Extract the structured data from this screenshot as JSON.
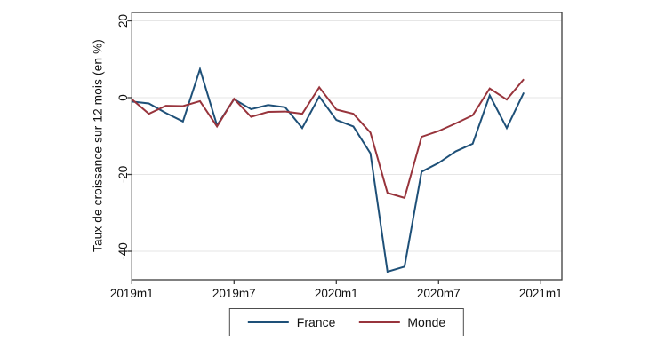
{
  "chart_data": {
    "type": "line",
    "title": "",
    "xlabel": "",
    "ylabel": "Taux de croissance sur 12 mois (en %)",
    "grid": true,
    "frame": "box",
    "legend_position": "bottom-center",
    "y_ticks": [
      20,
      0,
      -20,
      -40
    ],
    "ylim": [
      -47.5,
      22.2
    ],
    "x_axis_unit": "month",
    "x_tick_labels": [
      "2019m1",
      "2019m7",
      "2020m1",
      "2020m7",
      "2021m1"
    ],
    "x_tick_month_index": [
      0,
      6,
      12,
      18,
      24
    ],
    "x": [
      "2019m1",
      "2019m2",
      "2019m3",
      "2019m4",
      "2019m5",
      "2019m6",
      "2019m7",
      "2019m8",
      "2019m9",
      "2019m10",
      "2019m11",
      "2019m12",
      "2020m1",
      "2020m2",
      "2020m3",
      "2020m4",
      "2020m5",
      "2020m6",
      "2020m7",
      "2020m8",
      "2020m9",
      "2020m10",
      "2020m11",
      "2020m12"
    ],
    "series": [
      {
        "name": "France",
        "color": "#1e5078",
        "values": [
          -1.0,
          -1.5,
          -4.0,
          -6.2,
          7.4,
          -7.2,
          -0.4,
          -3.0,
          -1.9,
          -2.5,
          -7.9,
          0.3,
          -5.8,
          -7.5,
          -14.5,
          -45.3,
          -44.0,
          -19.3,
          -17.0,
          -14.0,
          -12.0,
          0.6,
          -7.9,
          1.3
        ]
      },
      {
        "name": "Monde",
        "color": "#98343c",
        "values": [
          -0.4,
          -4.2,
          -2.1,
          -2.2,
          -0.9,
          -7.5,
          -0.3,
          -5.0,
          -3.7,
          -3.6,
          -4.2,
          2.7,
          -3.1,
          -4.2,
          -9.1,
          -24.8,
          -26.1,
          -10.2,
          -8.7,
          -6.7,
          -4.6,
          2.4,
          -0.5,
          4.8
        ]
      }
    ],
    "style": {
      "grid_color": "#e6e6e6",
      "axis_color": "#3c3c3c",
      "text_color": "#111111",
      "line_width": 2
    }
  }
}
